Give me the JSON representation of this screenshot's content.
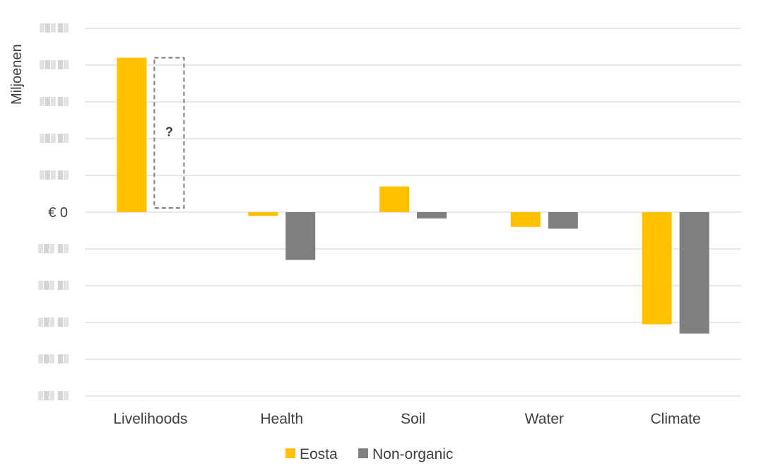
{
  "chart_data": {
    "type": "bar",
    "ylabel": "Miljoenen",
    "categories": [
      "Livelihoods",
      "Health",
      "Soil",
      "Water",
      "Climate"
    ],
    "series": [
      {
        "name": "Eosta",
        "color": "#FFC000",
        "values": [
          4.2,
          -0.1,
          0.7,
          -0.4,
          -3.05
        ]
      },
      {
        "name": "Non-organic",
        "color": "#7F7F7F",
        "values": [
          null,
          -1.3,
          -0.17,
          -0.45,
          -3.3
        ]
      }
    ],
    "unknown_bar": {
      "category": "Livelihoods",
      "series": "Non-organic",
      "label": "?",
      "value": 4.2
    },
    "ylim": [
      -5,
      5
    ],
    "zero_tick_label": "€ 0",
    "grid": true,
    "legend_position": "bottom"
  }
}
